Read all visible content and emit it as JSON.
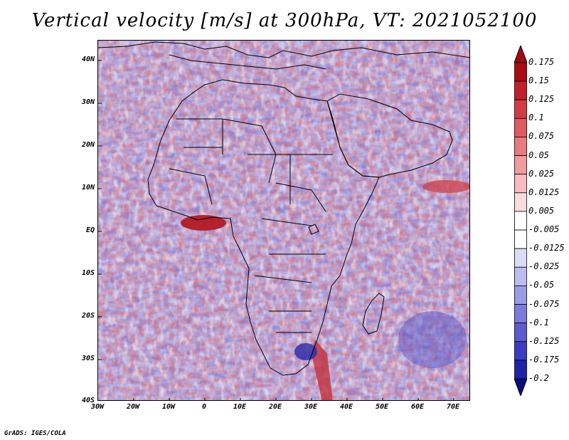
{
  "title": "Vertical velocity [m/s] at 300hPa, VT: 2021052100",
  "footer": "GrADS: IGES/COLA",
  "lat_labels": [
    "40N",
    "30N",
    "20N",
    "10N",
    "EQ",
    "10S",
    "20S",
    "30S",
    "40S"
  ],
  "lon_labels": [
    "30W",
    "20W",
    "10W",
    "0",
    "10E",
    "20E",
    "30E",
    "40E",
    "50E",
    "60E",
    "70E"
  ],
  "colorbar": {
    "labels": [
      "0.175",
      "0.15",
      "0.125",
      "0.1",
      "0.075",
      "0.05",
      "0.025",
      "0.0125",
      "0.005",
      "-0.005",
      "-0.0125",
      "-0.025",
      "-0.05",
      "-0.075",
      "-0.1",
      "-0.125",
      "-0.175",
      "-0.2"
    ],
    "colors": [
      "#a80c14",
      "#c0202a",
      "#d23c44",
      "#e05a62",
      "#e87a80",
      "#f09ca0",
      "#f6bcbe",
      "#fbdcdd",
      "#ffffff",
      "#ffffff",
      "#dcdcf6",
      "#bcbcee",
      "#9c9ce6",
      "#7c7cdc",
      "#5c5cd0",
      "#3c3cc0",
      "#2222a8",
      "#12128a"
    ]
  }
}
